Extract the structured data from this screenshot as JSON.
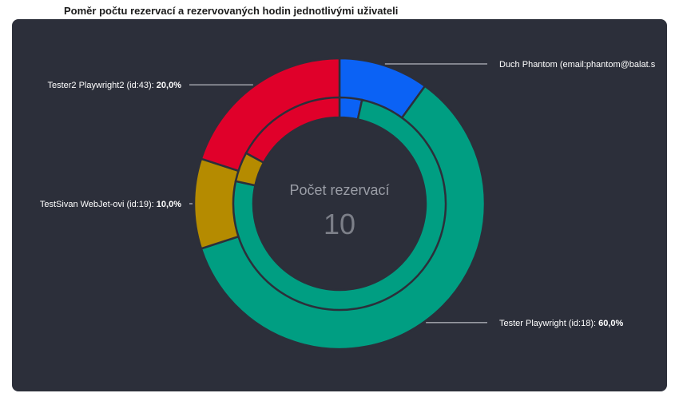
{
  "title": "Poměr počtu rezervací a rezervovaných hodin jednotlivými uživateli",
  "chart_data": {
    "type": "pie",
    "variant": "nested-donut",
    "title": "Poměr počtu rezervací a rezervovaných hodin jednotlivými uživateli",
    "center_title": "Počet rezervací",
    "center_value": "10",
    "outer": {
      "slices": [
        {
          "name": "Duch Phantom (email:phantom@balat.s",
          "label_name": "Duch Phantom (email:phantom@balat.s",
          "value": 10.0,
          "color": "#0b62f5"
        },
        {
          "name": "Tester Playwright (id:18)",
          "label_name": "Tester Playwright (id:18):",
          "value": 60.0,
          "color": "#009e82"
        },
        {
          "name": "TestSivan WebJet-ovi (id:19)",
          "label_name": "TestSivan WebJet-ovi (id:19):",
          "value": 10.0,
          "color": "#b58b00"
        },
        {
          "name": "Tester2 Playwright2 (id:43)",
          "label_name": "Tester2 Playwright2 (id:43):",
          "value": 20.0,
          "color": "#e0002a"
        }
      ]
    },
    "inner": {
      "slices": [
        {
          "name": "Duch Phantom",
          "value": 3.4,
          "color": "#0b62f5"
        },
        {
          "name": "Tester Playwright (id:18)",
          "value": 75.0,
          "color": "#009e82"
        },
        {
          "name": "TestSivan WebJet-ovi (id:19)",
          "value": 4.5,
          "color": "#b58b00"
        },
        {
          "name": "Tester2 Playwright2 (id:43)",
          "value": 17.1,
          "color": "#e0002a"
        }
      ]
    },
    "labels": [
      {
        "text": "Duch Phantom (email:phantom@balat.s",
        "value": "",
        "side": "right",
        "slice": 0
      },
      {
        "text": "Tester Playwright (id:18): ",
        "value": "60,0%",
        "side": "right",
        "slice": 1
      },
      {
        "text": "TestSivan WebJet-ovi (id:19): ",
        "value": "10,0%",
        "side": "left",
        "slice": 2
      },
      {
        "text": "Tester2 Playwright2 (id:43): ",
        "value": "20,0%",
        "side": "left",
        "slice": 3
      }
    ]
  }
}
